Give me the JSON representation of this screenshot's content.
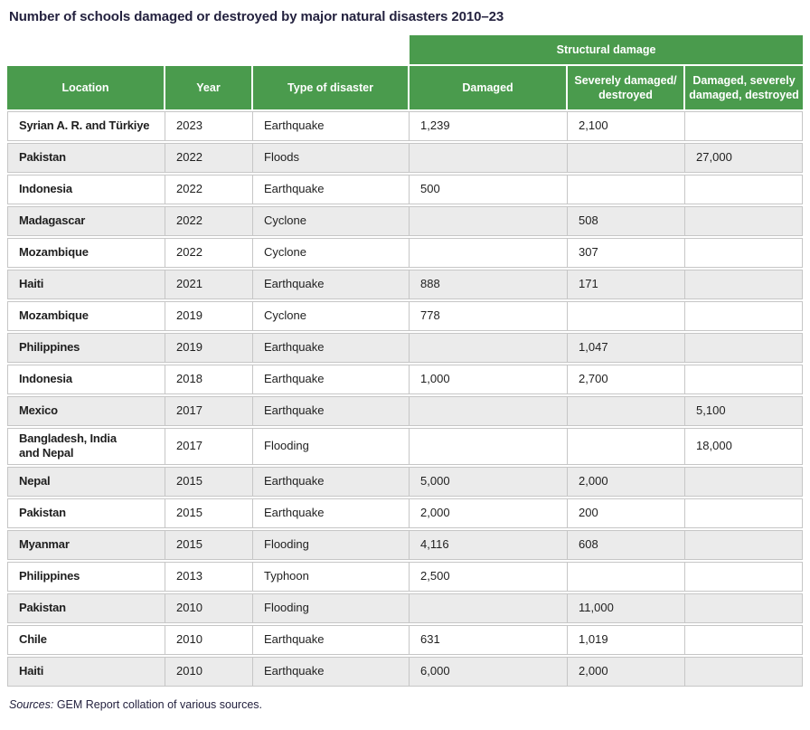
{
  "title": "Number of schools damaged or destroyed by major natural disasters 2010–23",
  "chart_data": {
    "type": "table",
    "title": "Number of schools damaged or destroyed by major natural disasters 2010–23",
    "group_header": "Structural damage",
    "group_header_spans_columns": [
      "Damaged",
      "Severely damaged/destroyed",
      "Damaged, severely damaged, destroyed"
    ],
    "columns": [
      "Location",
      "Year",
      "Type of disaster",
      "Damaged",
      "Severely damaged/\ndestroyed",
      "Damaged, severely\ndamaged, destroyed"
    ],
    "rows": [
      [
        "Syrian A. R. and Türkiye",
        "2023",
        "Earthquake",
        "1,239",
        "2,100",
        ""
      ],
      [
        "Pakistan",
        "2022",
        "Floods",
        "",
        "",
        "27,000"
      ],
      [
        "Indonesia",
        "2022",
        "Earthquake",
        "500",
        "",
        ""
      ],
      [
        "Madagascar",
        "2022",
        "Cyclone",
        "",
        "508",
        ""
      ],
      [
        "Mozambique",
        "2022",
        "Cyclone",
        "",
        "307",
        ""
      ],
      [
        "Haiti",
        "2021",
        "Earthquake",
        "888",
        "171",
        ""
      ],
      [
        "Mozambique",
        "2019",
        "Cyclone",
        "778",
        "",
        ""
      ],
      [
        "Philippines",
        "2019",
        "Earthquake",
        "",
        "1,047",
        ""
      ],
      [
        "Indonesia",
        "2018",
        "Earthquake",
        "1,000",
        "2,700",
        ""
      ],
      [
        "Mexico",
        "2017",
        "Earthquake",
        "",
        "",
        "5,100"
      ],
      [
        "Bangladesh, India\nand Nepal",
        "2017",
        "Flooding",
        "",
        "",
        "18,000"
      ],
      [
        "Nepal",
        "2015",
        "Earthquake",
        "5,000",
        "2,000",
        ""
      ],
      [
        "Pakistan",
        "2015",
        "Earthquake",
        "2,000",
        "200",
        ""
      ],
      [
        "Myanmar",
        "2015",
        "Flooding",
        "4,116",
        "608",
        ""
      ],
      [
        "Philippines",
        "2013",
        "Typhoon",
        "2,500",
        "",
        ""
      ],
      [
        "Pakistan",
        "2010",
        "Flooding",
        "",
        "11,000",
        ""
      ],
      [
        "Chile",
        "2010",
        "Earthquake",
        "631",
        "1,019",
        ""
      ],
      [
        "Haiti",
        "2010",
        "Earthquake",
        "6,000",
        "2,000",
        ""
      ]
    ]
  },
  "footer": {
    "label": "Sources:",
    "text": " GEM Report collation of various sources."
  },
  "colors": {
    "header_green": "#4a9b4d",
    "row_shaded": "#ebebeb",
    "border": "#c6c6c6",
    "title_text": "#24223f",
    "cell_text": "#1f1f1f",
    "header_text": "#ffffff"
  }
}
